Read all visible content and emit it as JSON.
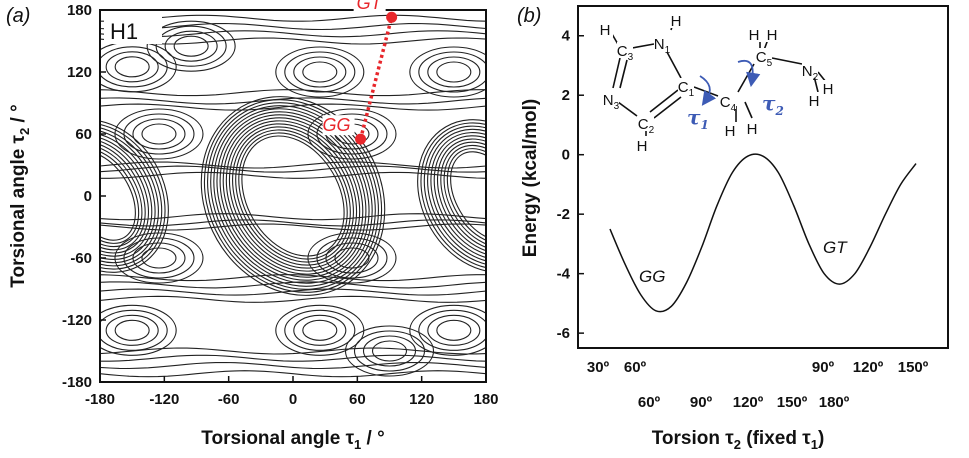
{
  "colors": {
    "accent_red": "#e8262b",
    "torsion_blue": "#3d5bb5",
    "contour": "#222222"
  },
  "panel_a": {
    "panel_label": "(a)",
    "inset_label": "H1",
    "xlabel": "Torsional angle τ",
    "xlabel_sub": "1",
    "xlabel_unit": " / °",
    "ylabel": "Torsional angle τ",
    "ylabel_sub": "2",
    "ylabel_unit": " / °",
    "xticks": [
      "-180",
      "-120",
      "-60",
      "0",
      "60",
      "120",
      "180"
    ],
    "yticks": [
      "180",
      "120",
      "60",
      "0",
      "-60",
      "-120",
      "-180"
    ]
  },
  "panel_b": {
    "panel_label": "(b)",
    "ylabel": "Energy (kcal/mol)",
    "yticks": [
      "4",
      "2",
      "0",
      "-2",
      "-4",
      "-6"
    ],
    "xticks_row1": [
      "30º",
      "60º",
      "90º",
      "120º",
      "150º"
    ],
    "xticks_row2": [
      "60º",
      "90º",
      "120º",
      "150º",
      "180º"
    ],
    "xlabel": "Torsion τ",
    "xlabel_sub": "2",
    "xlabel_tail": " (fixed τ",
    "xlabel_sub2": "1",
    "xlabel_end": ")",
    "gg_label": "GG",
    "gt_label": "GT"
  },
  "molecule": {
    "atoms": [
      {
        "sym": "H",
        "sub": ""
      },
      {
        "sym": "C",
        "sub": "3"
      },
      {
        "sym": "N",
        "sub": "1"
      },
      {
        "sym": "H",
        "sub": ""
      },
      {
        "sym": "N",
        "sub": "3"
      },
      {
        "sym": "C",
        "sub": "1"
      },
      {
        "sym": "C",
        "sub": "2"
      },
      {
        "sym": "H",
        "sub": ""
      },
      {
        "sym": "C",
        "sub": "4"
      },
      {
        "sym": "H",
        "sub": ""
      },
      {
        "sym": "H",
        "sub": ""
      },
      {
        "sym": "C",
        "sub": "5"
      },
      {
        "sym": "H",
        "sub": ""
      },
      {
        "sym": "H",
        "sub": ""
      },
      {
        "sym": "N",
        "sub": "2"
      },
      {
        "sym": "H",
        "sub": ""
      },
      {
        "sym": "H",
        "sub": ""
      }
    ],
    "tau1": "τ",
    "tau1_sub": "1",
    "tau2": "τ",
    "tau2_sub": "2"
  },
  "chart_data": [
    {
      "type": "contour",
      "title": "H1",
      "xlabel": "Torsional angle τ1 / °",
      "ylabel": "Torsional angle τ2 / °",
      "xlim": [
        -180,
        180
      ],
      "ylim": [
        -180,
        180
      ],
      "points": [
        {
          "label": "GG",
          "x": 63,
          "y": 55
        },
        {
          "label": "GT",
          "x": 92,
          "y": 173
        }
      ],
      "path": {
        "from": "GG",
        "to": "GT",
        "style": "dotted"
      }
    },
    {
      "type": "line",
      "ylabel": "Energy (kcal/mol)",
      "xlabel": "Torsion τ2 (fixed τ1)",
      "ylim": [
        -6.5,
        5
      ],
      "x": [
        0,
        1,
        2,
        3,
        4,
        5,
        6,
        7,
        8,
        9,
        10,
        11,
        12,
        13,
        14,
        15,
        16,
        17,
        18,
        19,
        20
      ],
      "values": [
        -2.5,
        -3.7,
        -4.7,
        -5.25,
        -5.1,
        -4.3,
        -3.1,
        -1.7,
        -0.6,
        -0.05,
        -0.05,
        -0.6,
        -1.7,
        -3.0,
        -4.0,
        -4.35,
        -4.0,
        -3.1,
        -2.0,
        -1.0,
        -0.3
      ],
      "annotations": [
        {
          "text": "GG",
          "near_x": 3
        },
        {
          "text": "GT",
          "near_x": 15
        }
      ]
    }
  ]
}
